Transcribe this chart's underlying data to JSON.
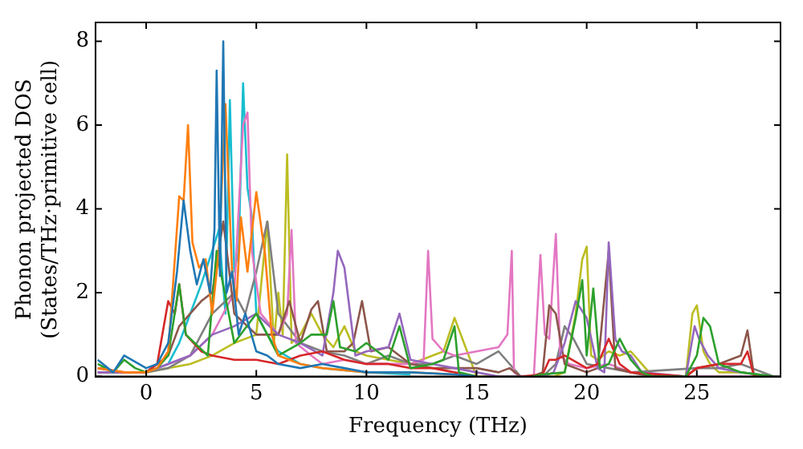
{
  "chart_data": {
    "type": "line",
    "xlabel": "Frequency (THz)",
    "ylabel": "Phonon projected DOS\n(States/THz·primitive cell)",
    "xlim": [
      -2.3,
      28.8
    ],
    "ylim": [
      0,
      8.45
    ],
    "xticks": [
      0,
      5,
      10,
      15,
      20,
      25
    ],
    "yticks": [
      0,
      2,
      4,
      6,
      8
    ],
    "grid": false,
    "legend": false,
    "marker": "none",
    "line_style": "solid",
    "series": [
      {
        "color": "#1f77b4",
        "x": [
          -2.2,
          -1.5,
          -1,
          0,
          0.5,
          1,
          1.4,
          1.7,
          2.0,
          2.3,
          2.6,
          2.9,
          3.1,
          3.2,
          3.35,
          3.5,
          3.65,
          3.9,
          4.2,
          4.5,
          5,
          5.5,
          6,
          7,
          8,
          9,
          10,
          12,
          14,
          15
        ],
        "values": [
          0.4,
          0.1,
          0.5,
          0.2,
          0.3,
          0.8,
          2.5,
          4.2,
          3.0,
          2.2,
          2.8,
          2.0,
          3.5,
          7.3,
          2.4,
          8.0,
          2.0,
          2.5,
          1.0,
          1.5,
          0.6,
          0.5,
          0.3,
          0.2,
          0.3,
          0.2,
          0.1,
          0.1,
          0.05,
          0
        ]
      },
      {
        "color": "#ff7f0e",
        "x": [
          -2.2,
          -1,
          0,
          0.5,
          1,
          1.3,
          1.5,
          1.7,
          1.9,
          2.1,
          2.4,
          2.7,
          3.0,
          3.3,
          3.6,
          3.9,
          4.1,
          4.3,
          4.6,
          5.0,
          5.4,
          5.7,
          6,
          7,
          8,
          10,
          12,
          14
        ],
        "values": [
          0.2,
          0.1,
          0.1,
          0.2,
          0.6,
          2.8,
          4.3,
          4.2,
          6.0,
          3.2,
          2.6,
          2.8,
          1.5,
          3.0,
          6.5,
          2.5,
          1.8,
          3.8,
          2.5,
          4.4,
          2.9,
          1.0,
          0.5,
          0.3,
          0.2,
          0.1,
          0.1,
          0.05
        ]
      },
      {
        "color": "#2ca02c",
        "x": [
          -2.2,
          -1.5,
          -1,
          -0.5,
          0,
          0.5,
          1,
          1.5,
          1.8,
          2.2,
          2.8,
          3.2,
          4,
          5,
          6,
          7,
          7.5,
          8.2,
          8.5,
          8.8,
          9.5,
          10,
          11,
          11.5,
          12,
          13,
          13.5,
          14,
          14.2,
          15,
          16,
          16.8,
          17.5,
          18,
          19,
          19.5,
          19.8,
          20.0,
          20.3,
          20.6,
          21,
          21.5,
          22,
          22.5,
          23,
          24.5,
          25,
          25.3,
          25.6,
          26,
          27,
          28.5
        ],
        "values": [
          0.3,
          0.1,
          0.4,
          0.2,
          0.1,
          0.2,
          0.5,
          2.2,
          1.0,
          0.8,
          0.5,
          3.0,
          0.8,
          1.5,
          0.5,
          0.8,
          1.0,
          1.0,
          1.8,
          0.7,
          0.6,
          0.8,
          0.4,
          1.2,
          0.2,
          0.3,
          0.4,
          1.2,
          0.1,
          0,
          null,
          null,
          0,
          0.05,
          0.1,
          1.4,
          2.3,
          0.5,
          2.1,
          0.2,
          0.3,
          0.9,
          0.4,
          0.1,
          0,
          0,
          0.5,
          1.4,
          1.2,
          0.3,
          0.1,
          0
        ]
      },
      {
        "color": "#d62728",
        "x": [
          -2.2,
          -1,
          0,
          0.5,
          1,
          1.3,
          1.5,
          1.8,
          2.5,
          3,
          4,
          5,
          6,
          7,
          8,
          9,
          10,
          11,
          12,
          13,
          14,
          15,
          16,
          17,
          18,
          18.3,
          18.6,
          19,
          20,
          20.5,
          21,
          21.5,
          22,
          24.5,
          25,
          26,
          27,
          27.3,
          27.6,
          28.5
        ],
        "values": [
          0.2,
          0.1,
          0.1,
          0.3,
          1.8,
          1.5,
          2.2,
          1.0,
          0.6,
          0.5,
          0.4,
          0.4,
          0.3,
          0.5,
          0.6,
          0.4,
          0.3,
          0.3,
          0.2,
          0.2,
          0.1,
          0,
          null,
          0,
          0.05,
          0.4,
          0.4,
          0.5,
          0.2,
          0.3,
          0.9,
          0.3,
          0.1,
          0,
          0.2,
          0.3,
          0.3,
          0.6,
          0,
          0
        ]
      },
      {
        "color": "#9467bd",
        "x": [
          -2.2,
          -1,
          0,
          1,
          2,
          3,
          4,
          5,
          6,
          7,
          8,
          8.5,
          8.7,
          9,
          9.5,
          10,
          11,
          11.5,
          12,
          13,
          14,
          15,
          16,
          17,
          18,
          18.5,
          19,
          19.5,
          20,
          20.5,
          20.8,
          21,
          21.3,
          21.6,
          22,
          22.5,
          24.5,
          24.9,
          25.1,
          25.5,
          26,
          27,
          28.5
        ],
        "values": [
          0.1,
          0.1,
          0.1,
          0.3,
          0.5,
          1.0,
          1.2,
          1.5,
          1.0,
          0.8,
          0.5,
          2.0,
          3.0,
          2.6,
          0.5,
          0.6,
          0.7,
          1.5,
          0.4,
          0.3,
          0.2,
          0.1,
          0,
          0,
          0,
          0.1,
          0.8,
          1.8,
          1.4,
          0.2,
          0.1,
          3.2,
          0.9,
          0.6,
          0.5,
          0.1,
          0,
          1.2,
          0.9,
          0.5,
          0.2,
          0.1,
          0
        ]
      },
      {
        "color": "#8c564b",
        "x": [
          -2.2,
          -1,
          0,
          1,
          1.5,
          2,
          2.5,
          3,
          3.5,
          4,
          5,
          6,
          6.5,
          7,
          7.5,
          7.8,
          8.2,
          9,
          9.4,
          9.8,
          10.2,
          11,
          12,
          13,
          14,
          15,
          16,
          16.5,
          17,
          17.5,
          18,
          18.3,
          18.6,
          19,
          20,
          20.5,
          21,
          21.3,
          22,
          23,
          24.5,
          25,
          26,
          27,
          27.3,
          27.6,
          28.5
        ],
        "values": [
          0.1,
          0.1,
          0.1,
          0.5,
          1.2,
          1.5,
          1.8,
          2.0,
          3.7,
          1.5,
          1.0,
          1.0,
          1.8,
          0.8,
          1.6,
          1.8,
          0.6,
          0.6,
          0.8,
          1.8,
          0.6,
          0.7,
          0.3,
          0.2,
          0.2,
          0.2,
          0.1,
          0.2,
          0,
          0,
          0.1,
          1.7,
          1.5,
          0.3,
          0.1,
          0.2,
          3.0,
          0.2,
          0.1,
          0,
          0,
          0.2,
          0.3,
          0.5,
          1.1,
          0,
          0
        ]
      },
      {
        "color": "#e377c2",
        "x": [
          -2.2,
          -1,
          0,
          1,
          2,
          3,
          4,
          4.4,
          4.6,
          4.8,
          5.2,
          6,
          6.4,
          6.6,
          6.8,
          7.5,
          8,
          9,
          10,
          11,
          12,
          12.6,
          12.8,
          13.0,
          13.5,
          14,
          15,
          16,
          16.4,
          16.6,
          16.7,
          17.0,
          17.6,
          17.9,
          18.1,
          18.3,
          18.6,
          18.8,
          19.2,
          20,
          21,
          22,
          23,
          28.5
        ],
        "values": [
          0.1,
          0.1,
          0.1,
          0.3,
          0.5,
          1.0,
          2.0,
          6.0,
          6.3,
          3.0,
          1.5,
          1.0,
          1.5,
          3.5,
          0.8,
          0.5,
          0.3,
          0.4,
          0.3,
          0.3,
          0.3,
          0.4,
          3.0,
          0.9,
          0.6,
          0.5,
          0.6,
          0.7,
          1.0,
          3.0,
          0.1,
          0,
          0,
          2.9,
          1.0,
          0.9,
          3.4,
          0.5,
          0.3,
          0.2,
          0.3,
          0.1,
          0,
          0
        ]
      },
      {
        "color": "#7f7f7f",
        "x": [
          -2.2,
          -1,
          0,
          1,
          2,
          3,
          4,
          4.5,
          5,
          5.5,
          6,
          7,
          8,
          9,
          10,
          11,
          12,
          13,
          14,
          15,
          16,
          17,
          18,
          18.6,
          19,
          19.4,
          20,
          21,
          22,
          25,
          26,
          27,
          28.5
        ],
        "values": [
          0.1,
          0.1,
          0.1,
          0.2,
          0.5,
          1.5,
          2.0,
          1.5,
          2.5,
          3.7,
          1.5,
          0.8,
          0.6,
          0.5,
          0.3,
          0.5,
          0.3,
          0.3,
          0.5,
          0.3,
          0.6,
          0,
          0,
          0.3,
          1.2,
          0.9,
          0.3,
          0.2,
          0.1,
          0.2,
          0.2,
          0.3,
          0
        ]
      },
      {
        "color": "#bcbd22",
        "x": [
          0,
          1,
          2,
          3,
          4,
          5,
          5.5,
          5.8,
          6.0,
          6.2,
          6.4,
          6.6,
          7,
          7.5,
          8,
          8.5,
          9,
          9.5,
          10,
          11,
          12,
          13,
          13.5,
          14,
          15,
          16,
          17,
          18.5,
          19,
          19.5,
          19.8,
          20.0,
          20.2,
          20.5,
          21,
          21.5,
          22,
          22.5,
          23,
          24.5,
          24.8,
          25.0,
          25.3,
          25.6,
          26,
          27,
          28.5
        ],
        "values": [
          0.1,
          0.2,
          0.3,
          0.5,
          0.8,
          1.0,
          3.7,
          0.8,
          2.0,
          1.0,
          5.3,
          0.8,
          1.0,
          1.5,
          1.0,
          0.7,
          1.2,
          0.6,
          0.5,
          0.4,
          0.3,
          0.5,
          0.6,
          1.4,
          0,
          0,
          0,
          0,
          0.1,
          1.5,
          2.8,
          3.1,
          0.5,
          0.4,
          0.6,
          0.5,
          0.6,
          0.3,
          0,
          0,
          1.5,
          1.7,
          0.6,
          0.3,
          0.1,
          0.1,
          0
        ]
      },
      {
        "color": "#17becf",
        "x": [
          0,
          1,
          1.5,
          2,
          2.5,
          3,
          3.3,
          3.6,
          3.8,
          4.0,
          4.2,
          4.4,
          4.6,
          4.8,
          5,
          5.5,
          6,
          7,
          8,
          10,
          12
        ],
        "values": [
          0.1,
          0.3,
          0.8,
          1.5,
          2.2,
          3.0,
          3.5,
          1.5,
          6.6,
          2.5,
          3.0,
          7.0,
          4.5,
          3.8,
          1.5,
          1.0,
          0.6,
          0.3,
          0.2,
          0.1,
          0.05
        ]
      }
    ]
  }
}
